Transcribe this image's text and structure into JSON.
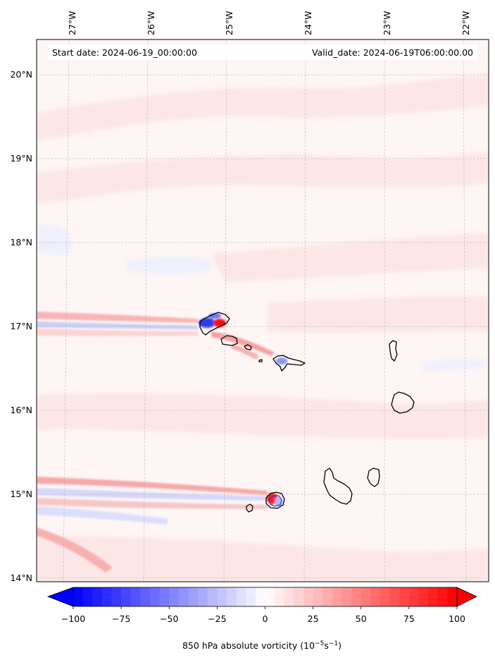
{
  "header": {
    "start_date": "Start date: 2024-06-19_00:00:00",
    "valid_date": "Valid_date: 2024-06-19T06:00:00.00"
  },
  "axes": {
    "lon_labels": [
      "27°W",
      "26°W",
      "25°W",
      "24°W",
      "23°W",
      "22°W"
    ],
    "lat_labels": [
      "20°N",
      "19°N",
      "18°N",
      "17°N",
      "16°N",
      "15°N",
      "14°N"
    ]
  },
  "colorbar": {
    "ticks": [
      "−100",
      "−75",
      "−50",
      "−25",
      "0",
      "25",
      "50",
      "75",
      "100"
    ],
    "label_main": "850 hPa absolute vorticity (10",
    "label_exp1": "−5",
    "label_mid": "s",
    "label_exp2": "−1",
    "label_end": ")",
    "min_color": "#0000ff",
    "mid_color": "#ffffff",
    "max_color": "#ff0000"
  },
  "chart_data": {
    "type": "heatmap",
    "variable": "850 hPa absolute vorticity",
    "units": "10^-5 s^-1",
    "vmin": -100,
    "vmax": 100,
    "levels_step": 5,
    "extend": "both",
    "cmap": "bwr",
    "lon_range": [
      -27.4,
      -21.8
    ],
    "lat_range": [
      13.95,
      20.45
    ],
    "gridlines": true,
    "coastlines": true
  }
}
